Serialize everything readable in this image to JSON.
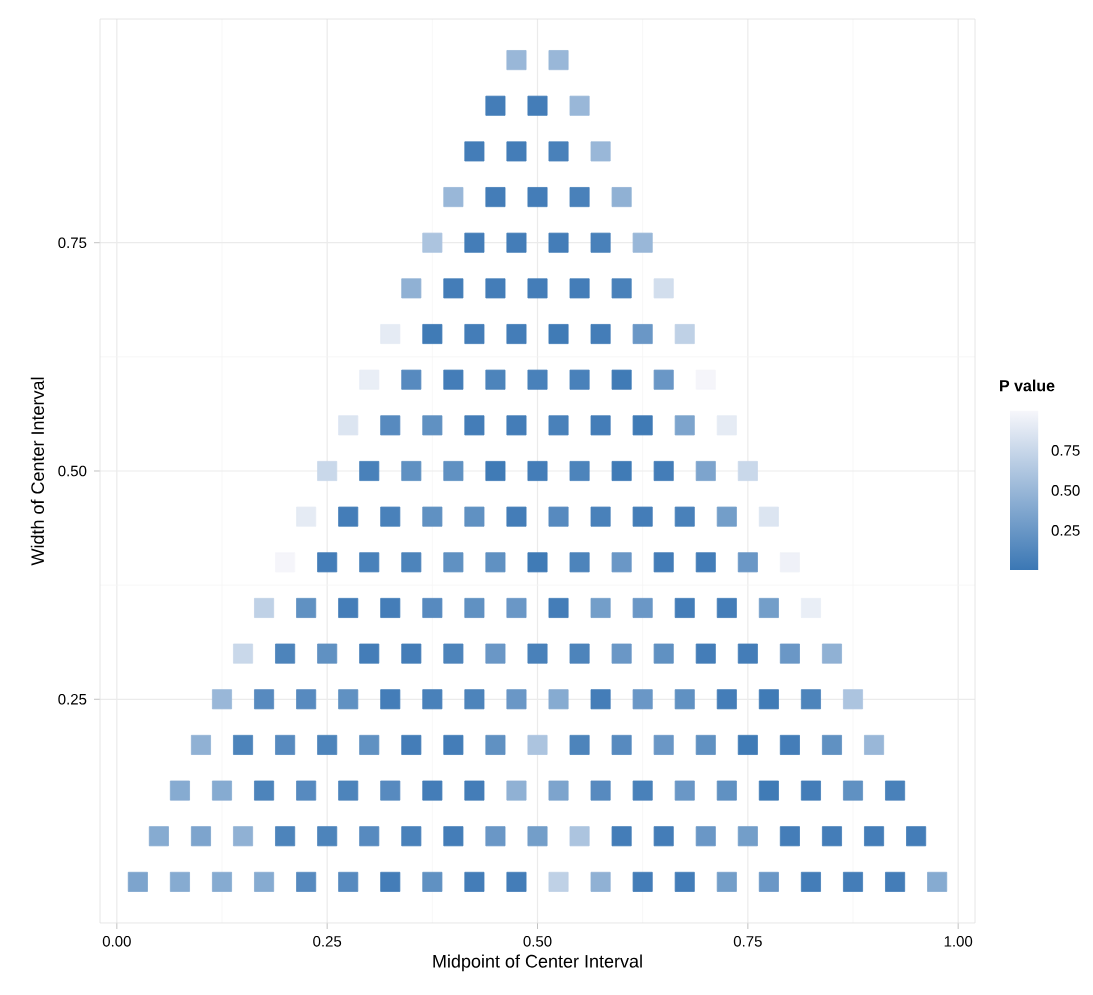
{
  "chart_data": {
    "type": "scatter",
    "xlabel": "Midpoint of Center Interval",
    "ylabel": "Width of Center Interval",
    "clabel": "P value",
    "x": [
      0.025,
      0.075,
      0.125,
      0.175,
      0.225,
      0.275,
      0.325,
      0.375,
      0.425,
      0.475,
      0.525,
      0.575,
      0.625,
      0.675,
      0.725,
      0.775,
      0.825,
      0.875,
      0.925,
      0.975,
      0.05,
      0.1,
      0.15,
      0.2,
      0.25,
      0.3,
      0.35,
      0.4,
      0.45,
      0.5,
      0.55,
      0.6,
      0.65,
      0.7,
      0.75,
      0.8,
      0.85,
      0.9,
      0.95,
      0.075,
      0.125,
      0.175,
      0.225,
      0.275,
      0.325,
      0.375,
      0.425,
      0.475,
      0.525,
      0.575,
      0.625,
      0.675,
      0.725,
      0.775,
      0.825,
      0.875,
      0.925,
      0.1,
      0.15,
      0.2,
      0.25,
      0.3,
      0.35,
      0.4,
      0.45,
      0.5,
      0.55,
      0.6,
      0.65,
      0.7,
      0.75,
      0.8,
      0.85,
      0.9,
      0.125,
      0.175,
      0.225,
      0.275,
      0.325,
      0.375,
      0.425,
      0.475,
      0.525,
      0.575,
      0.625,
      0.675,
      0.725,
      0.775,
      0.825,
      0.875,
      0.15,
      0.2,
      0.25,
      0.3,
      0.35,
      0.4,
      0.45,
      0.5,
      0.55,
      0.6,
      0.65,
      0.7,
      0.75,
      0.8,
      0.85,
      0.175,
      0.225,
      0.275,
      0.325,
      0.375,
      0.425,
      0.475,
      0.525,
      0.575,
      0.625,
      0.675,
      0.725,
      0.775,
      0.825,
      0.2,
      0.25,
      0.3,
      0.35,
      0.4,
      0.45,
      0.5,
      0.55,
      0.6,
      0.65,
      0.7,
      0.75,
      0.8,
      0.225,
      0.275,
      0.325,
      0.375,
      0.425,
      0.475,
      0.525,
      0.575,
      0.625,
      0.675,
      0.725,
      0.775,
      0.25,
      0.3,
      0.35,
      0.4,
      0.45,
      0.5,
      0.55,
      0.6,
      0.65,
      0.7,
      0.75,
      0.275,
      0.325,
      0.375,
      0.425,
      0.475,
      0.525,
      0.575,
      0.625,
      0.675,
      0.725,
      0.3,
      0.35,
      0.4,
      0.45,
      0.5,
      0.55,
      0.6,
      0.65,
      0.7,
      0.325,
      0.375,
      0.425,
      0.475,
      0.525,
      0.575,
      0.625,
      0.675,
      0.35,
      0.4,
      0.45,
      0.5,
      0.55,
      0.6,
      0.65,
      0.375,
      0.425,
      0.475,
      0.525,
      0.575,
      0.625,
      0.4,
      0.45,
      0.5,
      0.55,
      0.6,
      0.425,
      0.475,
      0.525,
      0.575,
      0.45,
      0.5,
      0.55,
      0.475,
      0.525
    ],
    "values": [
      0.05,
      0.05,
      0.05,
      0.05,
      0.05,
      0.05,
      0.05,
      0.05,
      0.05,
      0.05,
      0.05,
      0.05,
      0.05,
      0.05,
      0.05,
      0.05,
      0.05,
      0.05,
      0.05,
      0.05,
      0.1,
      0.1,
      0.1,
      0.1,
      0.1,
      0.1,
      0.1,
      0.1,
      0.1,
      0.1,
      0.1,
      0.1,
      0.1,
      0.1,
      0.1,
      0.1,
      0.1,
      0.1,
      0.1,
      0.15,
      0.15,
      0.15,
      0.15,
      0.15,
      0.15,
      0.15,
      0.15,
      0.15,
      0.15,
      0.15,
      0.15,
      0.15,
      0.15,
      0.15,
      0.15,
      0.15,
      0.15,
      0.2,
      0.2,
      0.2,
      0.2,
      0.2,
      0.2,
      0.2,
      0.2,
      0.2,
      0.2,
      0.2,
      0.2,
      0.2,
      0.2,
      0.2,
      0.2,
      0.2,
      0.25,
      0.25,
      0.25,
      0.25,
      0.25,
      0.25,
      0.25,
      0.25,
      0.25,
      0.25,
      0.25,
      0.25,
      0.25,
      0.25,
      0.25,
      0.25,
      0.3,
      0.3,
      0.3,
      0.3,
      0.3,
      0.3,
      0.3,
      0.3,
      0.3,
      0.3,
      0.3,
      0.3,
      0.3,
      0.3,
      0.3,
      0.35,
      0.35,
      0.35,
      0.35,
      0.35,
      0.35,
      0.35,
      0.35,
      0.35,
      0.35,
      0.35,
      0.35,
      0.35,
      0.35,
      0.4,
      0.4,
      0.4,
      0.4,
      0.4,
      0.4,
      0.4,
      0.4,
      0.4,
      0.4,
      0.4,
      0.4,
      0.4,
      0.45,
      0.45,
      0.45,
      0.45,
      0.45,
      0.45,
      0.45,
      0.45,
      0.45,
      0.45,
      0.45,
      0.45,
      0.5,
      0.5,
      0.5,
      0.5,
      0.5,
      0.5,
      0.5,
      0.5,
      0.5,
      0.5,
      0.5,
      0.55,
      0.55,
      0.55,
      0.55,
      0.55,
      0.55,
      0.55,
      0.55,
      0.55,
      0.55,
      0.6,
      0.6,
      0.6,
      0.6,
      0.6,
      0.6,
      0.6,
      0.6,
      0.6,
      0.65,
      0.65,
      0.65,
      0.65,
      0.65,
      0.65,
      0.65,
      0.65,
      0.7,
      0.7,
      0.7,
      0.7,
      0.7,
      0.7,
      0.7,
      0.75,
      0.75,
      0.75,
      0.75,
      0.75,
      0.75,
      0.8,
      0.8,
      0.8,
      0.8,
      0.8,
      0.85,
      0.85,
      0.85,
      0.85,
      0.9,
      0.9,
      0.9,
      0.95,
      0.95
    ],
    "cvalues": [
      0.35,
      0.4,
      0.4,
      0.4,
      0.15,
      0.15,
      0.05,
      0.2,
      0.05,
      0.05,
      0.7,
      0.45,
      0.05,
      0.05,
      0.3,
      0.25,
      0.05,
      0.05,
      0.05,
      0.4,
      0.4,
      0.35,
      0.45,
      0.1,
      0.1,
      0.15,
      0.08,
      0.05,
      0.25,
      0.3,
      0.6,
      0.05,
      0.05,
      0.25,
      0.3,
      0.05,
      0.05,
      0.05,
      0.05,
      0.4,
      0.4,
      0.1,
      0.15,
      0.1,
      0.15,
      0.05,
      0.05,
      0.45,
      0.35,
      0.15,
      0.08,
      0.25,
      0.2,
      0.03,
      0.05,
      0.2,
      0.08,
      0.45,
      0.1,
      0.15,
      0.1,
      0.2,
      0.05,
      0.05,
      0.2,
      0.6,
      0.1,
      0.15,
      0.25,
      0.2,
      0.03,
      0.05,
      0.2,
      0.5,
      0.5,
      0.15,
      0.15,
      0.2,
      0.05,
      0.08,
      0.1,
      0.25,
      0.4,
      0.05,
      0.25,
      0.2,
      0.05,
      0.03,
      0.1,
      0.6,
      0.75,
      0.1,
      0.2,
      0.05,
      0.05,
      0.1,
      0.25,
      0.08,
      0.1,
      0.25,
      0.2,
      0.05,
      0.05,
      0.25,
      0.45,
      0.7,
      0.2,
      0.05,
      0.05,
      0.15,
      0.2,
      0.25,
      0.05,
      0.3,
      0.25,
      0.05,
      0.05,
      0.3,
      0.92,
      0.98,
      0.05,
      0.08,
      0.1,
      0.2,
      0.2,
      0.03,
      0.1,
      0.25,
      0.05,
      0.05,
      0.25,
      0.95,
      0.9,
      0.05,
      0.08,
      0.2,
      0.2,
      0.05,
      0.15,
      0.08,
      0.05,
      0.08,
      0.3,
      0.85,
      0.75,
      0.08,
      0.2,
      0.2,
      0.03,
      0.05,
      0.1,
      0.03,
      0.05,
      0.35,
      0.75,
      0.85,
      0.15,
      0.2,
      0.05,
      0.05,
      0.08,
      0.05,
      0.03,
      0.35,
      0.9,
      0.92,
      0.15,
      0.05,
      0.1,
      0.08,
      0.08,
      0.03,
      0.25,
      0.98,
      0.9,
      0.03,
      0.05,
      0.05,
      0.03,
      0.05,
      0.25,
      0.7,
      0.45,
      0.05,
      0.05,
      0.05,
      0.05,
      0.08,
      0.8,
      0.6,
      0.05,
      0.05,
      0.05,
      0.08,
      0.5,
      0.5,
      0.05,
      0.05,
      0.08,
      0.45,
      0.05,
      0.05,
      0.08,
      0.5,
      0.05,
      0.05,
      0.5,
      0.5,
      0.5
    ],
    "clim": [
      0,
      1
    ],
    "cticks": [
      0.25,
      {
        "value": 0.5,
        "label": "0.50"
      },
      0.75
    ],
    "xlim": [
      -0.02,
      1.02
    ],
    "ylim": [
      0.005,
      0.995
    ],
    "xticks": [
      {
        "value": 0,
        "label": "0.00"
      },
      0.25,
      {
        "value": 0.5,
        "label": "0.50"
      },
      0.75,
      {
        "value": 1,
        "label": "1.00"
      }
    ],
    "yticks": [
      0.25,
      {
        "value": 0.5,
        "label": "0.50"
      },
      0.75
    ],
    "grid": true,
    "marker": "square"
  }
}
